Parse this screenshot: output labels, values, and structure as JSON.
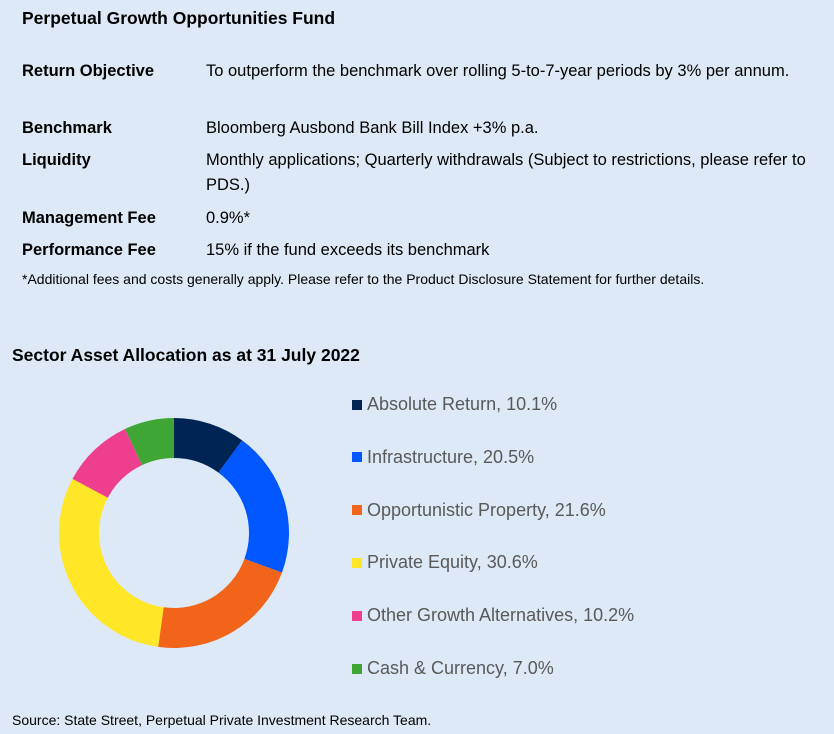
{
  "title": "Perpetual Growth Opportunities Fund",
  "details": [
    {
      "label": "Return Objective",
      "value": "To outperform the benchmark over rolling 5-to-7-year periods by 3% per annum."
    },
    {
      "label": "Benchmark",
      "value": "Bloomberg Ausbond Bank Bill Index +3% p.a."
    },
    {
      "label": "Liquidity",
      "value": "Monthly applications; Quarterly withdrawals (Subject to restrictions, please refer to PDS.)"
    },
    {
      "label": "Management Fee",
      "value": "0.9%*"
    },
    {
      "label": "Performance Fee",
      "value": "15% if the fund exceeds its benchmark"
    }
  ],
  "footnote": "*Additional fees and costs generally apply. Please refer to the Product Disclosure Statement for further details.",
  "source": "Source: State Street, Perpetual Private Investment Research Team.",
  "chart_data": {
    "type": "pie",
    "donut": true,
    "title": "Sector Asset Allocation as at 31 July 2022",
    "legend_position": "right",
    "categories": [
      "Absolute Return",
      "Infrastructure",
      "Opportunistic Property",
      "Private Equity",
      "Other Growth Alternatives",
      "Cash & Currency"
    ],
    "values": [
      10.1,
      20.5,
      21.6,
      30.6,
      10.2,
      7.0
    ],
    "legend_labels": [
      "Absolute Return, 10.1%",
      "Infrastructure, 20.5%",
      "Opportunistic Property, 21.6%",
      "Private Equity, 30.6%",
      "Other Growth Alternatives, 10.2%",
      "Cash & Currency, 7.0%"
    ],
    "colors": [
      "#002554",
      "#0057ff",
      "#f26419",
      "#ffe626",
      "#ef3e8d",
      "#3fa535"
    ]
  }
}
